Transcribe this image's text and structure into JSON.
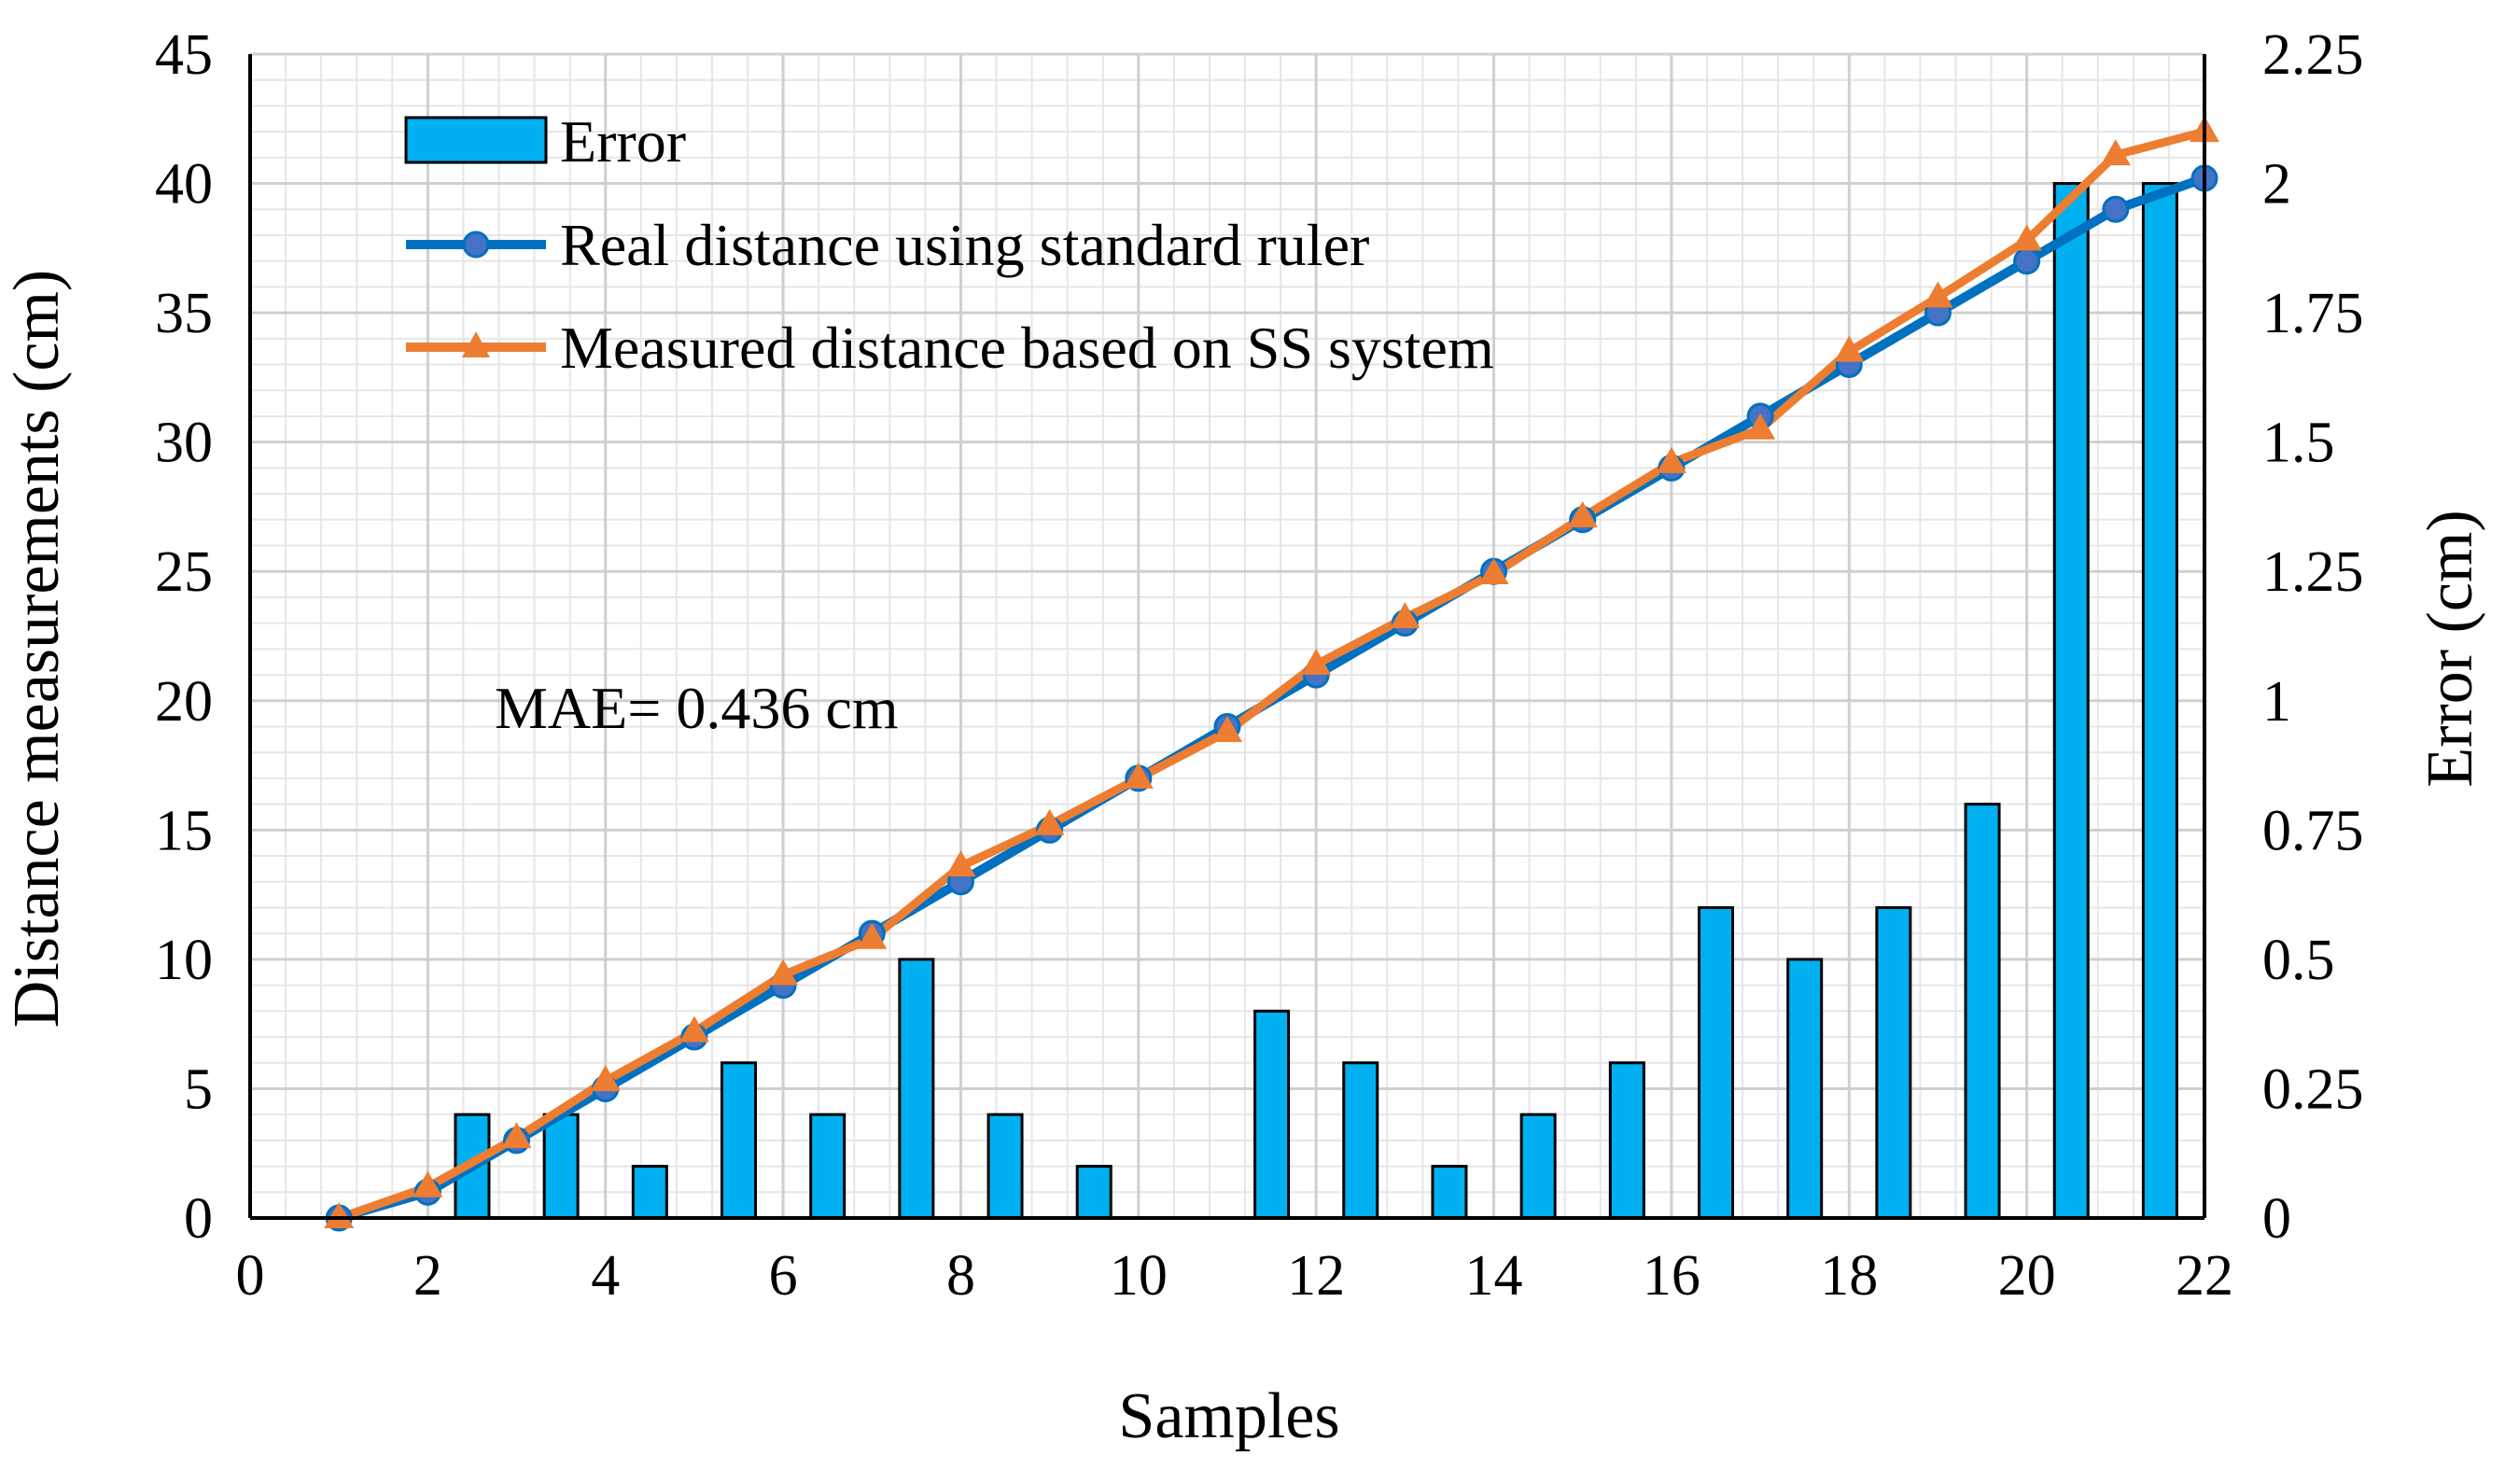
{
  "chart_data": {
    "type": "bar+line",
    "xlabel": "Samples",
    "ylabel_left": "Distance  measurements (cm)",
    "ylabel_right": "Error (cm)",
    "xlim": [
      0,
      22
    ],
    "ylim_left": [
      0,
      45
    ],
    "ylim_right": [
      0,
      2.25
    ],
    "x_ticks": [
      "0",
      "2",
      "4",
      "6",
      "8",
      "10",
      "12",
      "14",
      "16",
      "18",
      "20",
      "22"
    ],
    "y_left_ticks": [
      "0",
      "5",
      "10",
      "15",
      "20",
      "25",
      "30",
      "35",
      "40",
      "45"
    ],
    "y_right_ticks": [
      "0",
      "0.25",
      "0.5",
      "0.75",
      "1",
      "1.25",
      "1.5",
      "1.75",
      "2",
      "2.25"
    ],
    "grid": true,
    "legend_position": "top-left",
    "annotation": "MAE= 0.436 cm",
    "x": [
      1,
      2,
      3,
      4,
      5,
      6,
      7,
      8,
      9,
      10,
      11,
      12,
      13,
      14,
      15,
      16,
      17,
      18,
      19,
      20,
      21,
      22
    ],
    "series": [
      {
        "name": "Error",
        "kind": "bar",
        "axis": "right",
        "color": "#00B0F0",
        "values": [
          0,
          0.2,
          0.2,
          0.1,
          0.3,
          0.2,
          0.5,
          0.2,
          0.1,
          0,
          0.4,
          0.3,
          0.1,
          0.2,
          0.3,
          0.6,
          0.5,
          0.6,
          0.8,
          2.0,
          2.0,
          0
        ]
      },
      {
        "name": "Real distance using standard ruler",
        "kind": "line",
        "marker": "circle",
        "axis": "left",
        "color": "#0070C0",
        "marker_color": "#4472C4",
        "values": [
          0,
          1,
          3,
          5,
          7,
          9,
          11,
          13,
          15,
          17,
          19,
          21,
          23,
          25,
          27,
          29,
          31,
          33,
          35,
          37,
          39,
          40.2
        ]
      },
      {
        "name": "Measured distance based on SS system",
        "kind": "line",
        "marker": "triangle",
        "axis": "left",
        "color": "#ED7D31",
        "values": [
          0,
          1.2,
          3.1,
          5.3,
          7.2,
          9.4,
          10.8,
          13.6,
          15.2,
          17.0,
          18.8,
          21.4,
          23.2,
          24.9,
          27.1,
          29.2,
          30.5,
          33.5,
          35.6,
          37.8,
          41.1,
          42.0
        ]
      }
    ]
  }
}
